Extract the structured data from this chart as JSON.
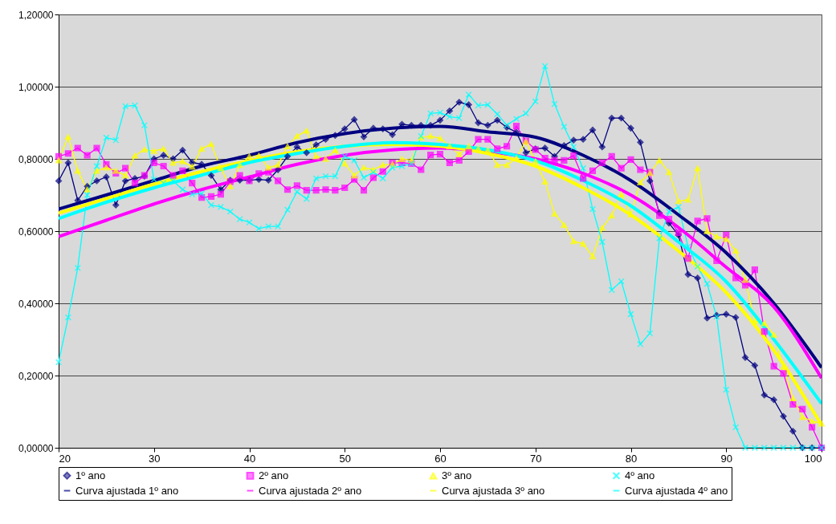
{
  "chart_data": {
    "type": "line",
    "x": [
      20,
      21,
      22,
      23,
      24,
      25,
      26,
      27,
      28,
      29,
      30,
      31,
      32,
      33,
      34,
      35,
      36,
      37,
      38,
      39,
      40,
      41,
      42,
      43,
      44,
      45,
      46,
      47,
      48,
      49,
      50,
      51,
      52,
      53,
      54,
      55,
      56,
      57,
      58,
      59,
      60,
      61,
      62,
      63,
      64,
      65,
      66,
      67,
      68,
      69,
      70,
      71,
      72,
      73,
      74,
      75,
      76,
      77,
      78,
      79,
      80,
      81,
      82,
      83,
      84,
      85,
      86,
      87,
      88,
      89,
      90,
      91,
      92,
      93,
      94,
      95,
      96,
      97,
      98,
      99,
      100
    ],
    "series": [
      {
        "name": "1º ano",
        "color": "#000080",
        "marker": "diamond",
        "values": [
          0.739,
          0.789,
          0.685,
          0.724,
          0.739,
          0.75,
          0.672,
          0.739,
          0.746,
          0.752,
          0.8,
          0.81,
          0.8,
          0.824,
          0.79,
          0.785,
          0.754,
          0.715,
          0.741,
          0.741,
          0.741,
          0.743,
          0.741,
          0.77,
          0.807,
          0.833,
          0.817,
          0.839,
          0.854,
          0.865,
          0.883,
          0.909,
          0.861,
          0.885,
          0.883,
          0.867,
          0.896,
          0.893,
          0.893,
          0.893,
          0.907,
          0.933,
          0.957,
          0.95,
          0.9,
          0.893,
          0.907,
          0.887,
          0.874,
          0.817,
          0.828,
          0.83,
          0.807,
          0.837,
          0.852,
          0.854,
          0.88,
          0.833,
          0.913,
          0.913,
          0.885,
          0.846,
          0.739,
          0.65,
          0.622,
          0.589,
          0.48,
          0.47,
          0.359,
          0.367,
          0.37,
          0.361,
          0.25,
          0.228,
          0.146,
          0.133,
          0.087,
          0.046,
          0,
          0,
          0
        ]
      },
      {
        "name": "2º ano",
        "color": "#ff00ff",
        "marker": "square",
        "values": [
          0.807,
          0.815,
          0.83,
          0.81,
          0.83,
          0.785,
          0.76,
          0.774,
          0.733,
          0.754,
          0.789,
          0.78,
          0.754,
          0.767,
          0.733,
          0.693,
          0.696,
          0.702,
          0.737,
          0.754,
          0.739,
          0.759,
          0.763,
          0.739,
          0.715,
          0.726,
          0.713,
          0.713,
          0.715,
          0.713,
          0.72,
          0.743,
          0.713,
          0.748,
          0.765,
          0.789,
          0.789,
          0.787,
          0.77,
          0.811,
          0.813,
          0.789,
          0.796,
          0.82,
          0.854,
          0.854,
          0.828,
          0.835,
          0.891,
          0.85,
          0.826,
          0.802,
          0.796,
          0.796,
          0.809,
          0.746,
          0.767,
          0.789,
          0.807,
          0.774,
          0.798,
          0.77,
          0.763,
          0.643,
          0.633,
          0.596,
          0.524,
          0.628,
          0.635,
          0.518,
          0.589,
          0.47,
          0.45,
          0.493,
          0.322,
          0.226,
          0.206,
          0.12,
          0.107,
          0.057,
          0
        ]
      },
      {
        "name": "3º ano",
        "color": "#ffff00",
        "marker": "triangle",
        "values": [
          0.796,
          0.861,
          0.767,
          0.715,
          0.767,
          0.776,
          0.767,
          0.754,
          0.809,
          0.826,
          0.822,
          0.828,
          0.789,
          0.793,
          0.778,
          0.828,
          0.841,
          0.774,
          0.724,
          0.783,
          0.807,
          0.809,
          0.776,
          0.783,
          0.835,
          0.863,
          0.878,
          0.807,
          0.8,
          0.824,
          0.787,
          0.754,
          0.776,
          0.77,
          0.783,
          0.785,
          0.8,
          0.796,
          0.859,
          0.863,
          0.857,
          0.835,
          0.813,
          0.835,
          0.828,
          0.824,
          0.783,
          0.783,
          0.802,
          0.848,
          0.793,
          0.737,
          0.648,
          0.617,
          0.572,
          0.565,
          0.53,
          0.609,
          0.643,
          0.702,
          0.646,
          0.735,
          0.761,
          0.796,
          0.763,
          0.683,
          0.687,
          0.774,
          0.6,
          0.585,
          0.578,
          0.546,
          0.465,
          0.35,
          0.345,
          0.313,
          0.224,
          0.137,
          0.085,
          0.074,
          0.067
        ]
      },
      {
        "name": "4º ano",
        "color": "#00ffff",
        "marker": "cross",
        "values": [
          0.237,
          0.361,
          0.498,
          0.7,
          0.78,
          0.859,
          0.852,
          0.946,
          0.948,
          0.893,
          0.743,
          0.733,
          0.739,
          0.715,
          0.702,
          0.704,
          0.672,
          0.667,
          0.654,
          0.633,
          0.624,
          0.607,
          0.613,
          0.613,
          0.659,
          0.709,
          0.689,
          0.746,
          0.752,
          0.752,
          0.807,
          0.796,
          0.748,
          0.763,
          0.746,
          0.776,
          0.78,
          0.787,
          0.863,
          0.926,
          0.928,
          0.917,
          0.913,
          0.978,
          0.948,
          0.95,
          0.924,
          0.893,
          0.911,
          0.926,
          0.959,
          1.057,
          0.952,
          0.889,
          0.833,
          0.774,
          0.661,
          0.57,
          0.437,
          0.461,
          0.37,
          0.287,
          0.317,
          0.58,
          0.654,
          0.667,
          0.557,
          0.502,
          0.454,
          0.363,
          0.161,
          0.057,
          0,
          0,
          0,
          0,
          0,
          0,
          0,
          0,
          0
        ]
      },
      {
        "name": "Curva ajustada 1º ano",
        "color": "#000080",
        "marker": "none",
        "x": [
          20,
          25,
          30,
          35,
          40,
          45,
          50,
          55,
          60,
          65,
          70,
          75,
          80,
          85,
          90,
          95,
          100
        ],
        "values": [
          0.661,
          0.7,
          0.74,
          0.78,
          0.81,
          0.845,
          0.87,
          0.885,
          0.89,
          0.875,
          0.86,
          0.81,
          0.74,
          0.645,
          0.54,
          0.4,
          0.222
        ]
      },
      {
        "name": "Curva ajustada 2º ano",
        "color": "#ff00ff",
        "marker": "none",
        "x": [
          20,
          25,
          30,
          35,
          40,
          45,
          50,
          55,
          60,
          65,
          70,
          75,
          80,
          85,
          90,
          95,
          100
        ],
        "values": [
          0.585,
          0.63,
          0.675,
          0.715,
          0.75,
          0.785,
          0.81,
          0.825,
          0.83,
          0.82,
          0.8,
          0.76,
          0.7,
          0.61,
          0.5,
          0.39,
          0.193
        ]
      },
      {
        "name": "Curva ajustada 3º ano",
        "color": "#ffff00",
        "marker": "none",
        "x": [
          20,
          25,
          30,
          35,
          40,
          45,
          50,
          55,
          60,
          65,
          70,
          75,
          80,
          85,
          90,
          95,
          100
        ],
        "values": [
          0.65,
          0.69,
          0.73,
          0.765,
          0.795,
          0.82,
          0.835,
          0.84,
          0.835,
          0.815,
          0.78,
          0.72,
          0.645,
          0.545,
          0.43,
          0.27,
          0.063
        ]
      },
      {
        "name": "Curva ajustada 4º ano",
        "color": "#00ffff",
        "marker": "none",
        "x": [
          20,
          25,
          30,
          35,
          40,
          45,
          50,
          55,
          60,
          65,
          70,
          75,
          80,
          85,
          90,
          95,
          100
        ],
        "values": [
          0.635,
          0.68,
          0.72,
          0.755,
          0.79,
          0.815,
          0.835,
          0.845,
          0.84,
          0.825,
          0.795,
          0.74,
          0.67,
          0.57,
          0.46,
          0.3,
          0.122
        ]
      }
    ],
    "xlim": [
      20,
      100
    ],
    "xticks": [
      20,
      30,
      40,
      50,
      60,
      70,
      80,
      90,
      100
    ],
    "ylim": [
      0,
      1.2
    ],
    "yticks": [
      {
        "value": 0,
        "label": "0,00000"
      },
      {
        "value": 0.2,
        "label": "0,20000"
      },
      {
        "value": 0.4,
        "label": "0,40000"
      },
      {
        "value": 0.6,
        "label": "0,60000"
      },
      {
        "value": 0.8,
        "label": "0,80000"
      },
      {
        "value": 1.0,
        "label": "1,00000"
      },
      {
        "value": 1.2,
        "label": "1,20000"
      }
    ],
    "grid": "y",
    "legend": "bottom"
  }
}
